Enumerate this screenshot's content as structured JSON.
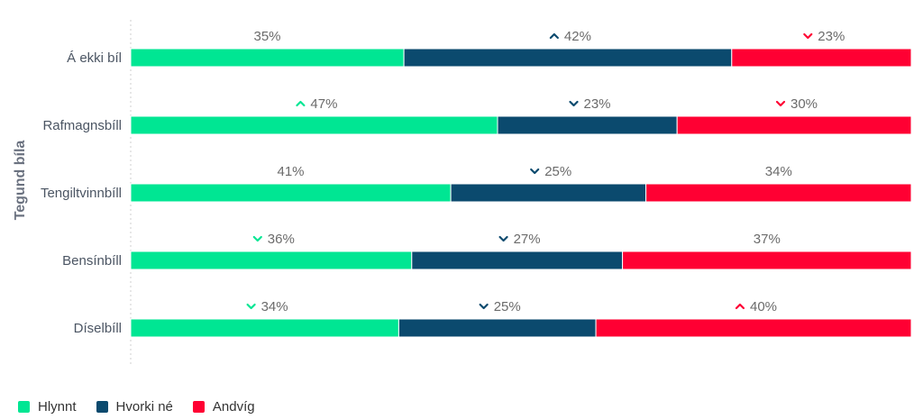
{
  "chart_data": {
    "type": "bar",
    "orientation": "horizontal",
    "stacked": true,
    "normalized": true,
    "ylabel": "Tegund bíla",
    "categories": [
      "Á ekki bíl",
      "Rafmagnsbíll",
      "Tengiltvinnbíll",
      "Bensínbíll",
      "Díselbíll"
    ],
    "series": [
      {
        "name": "Hlynnt",
        "color": "#00e693",
        "values": [
          35,
          47,
          41,
          36,
          34
        ],
        "labels": [
          "35%",
          "47%",
          "41%",
          "36%",
          "34%"
        ],
        "trend": [
          "none",
          "up",
          "none",
          "down",
          "down"
        ]
      },
      {
        "name": "Hvorki né",
        "color": "#0b4a6e",
        "values": [
          42,
          23,
          25,
          27,
          25
        ],
        "labels": [
          "42%",
          "23%",
          "25%",
          "27%",
          "25%"
        ],
        "trend": [
          "up",
          "down",
          "down",
          "down",
          "down"
        ]
      },
      {
        "name": "Andvíg",
        "color": "#ff0033",
        "values": [
          23,
          30,
          34,
          37,
          40
        ],
        "labels": [
          "23%",
          "30%",
          "34%",
          "37%",
          "40%"
        ],
        "trend": [
          "down",
          "down",
          "none",
          "none",
          "up"
        ]
      }
    ],
    "xlim": [
      0,
      100
    ],
    "grid": false,
    "legend_position": "bottom-left"
  }
}
